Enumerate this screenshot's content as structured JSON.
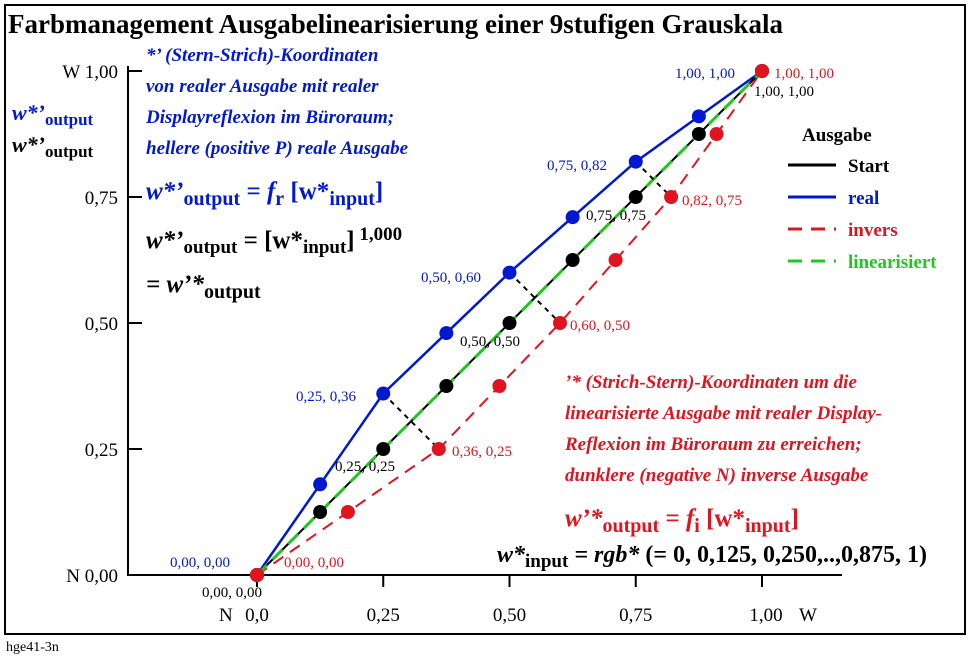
{
  "footer_id": "hge41-3n",
  "chart_data": {
    "type": "line",
    "title": "Farbmanagement Ausgabelinearisierung einer 9stufigen Grauskala",
    "x_tick_labels": [
      "N",
      "0,0",
      "0,25",
      "0,50",
      "0,75",
      "1,00",
      "W"
    ],
    "y_tick_labels": [
      "N 0,00",
      "0,25",
      "0,50",
      "0,75",
      "W 1,00"
    ],
    "ylabel_blue": {
      "base": "w*’",
      "sub": "output"
    },
    "ylabel_black": {
      "base": "w*’",
      "sub": "output"
    },
    "xlim": [
      0,
      1
    ],
    "ylim": [
      0,
      1
    ],
    "grid": false,
    "legend": {
      "title": "Ausgabe",
      "entries": [
        {
          "label": "Start",
          "color": "#000000",
          "dash": "solid"
        },
        {
          "label": "real",
          "color": "#0018d0",
          "dash": "solid"
        },
        {
          "label": "invers",
          "color": "#e0141e",
          "dash": "dashed"
        },
        {
          "label": "linearisiert",
          "color": "#1ec81e",
          "dash": "dashed"
        }
      ]
    },
    "series": [
      {
        "name": "Start",
        "color": "#000000",
        "x": [
          0,
          0.125,
          0.25,
          0.375,
          0.5,
          0.625,
          0.75,
          0.875,
          1.0
        ],
        "y": [
          0,
          0.125,
          0.25,
          0.375,
          0.5,
          0.625,
          0.75,
          0.875,
          1.0
        ]
      },
      {
        "name": "real",
        "color": "#0018d0",
        "x": [
          0,
          0.125,
          0.25,
          0.375,
          0.5,
          0.625,
          0.75,
          0.875,
          1.0
        ],
        "y": [
          0,
          0.18,
          0.36,
          0.48,
          0.6,
          0.71,
          0.82,
          0.91,
          1.0
        ]
      },
      {
        "name": "invers",
        "color": "#e0141e",
        "x": [
          0,
          0.18,
          0.36,
          0.48,
          0.6,
          0.71,
          0.82,
          0.91,
          1.0
        ],
        "y": [
          0,
          0.125,
          0.25,
          0.375,
          0.5,
          0.625,
          0.75,
          0.875,
          1.0
        ]
      },
      {
        "name": "linearisiert",
        "color": "#1ec81e",
        "x": [
          0,
          1
        ],
        "y": [
          0,
          1
        ]
      }
    ],
    "connectors": [
      {
        "from": [
          0.25,
          0.36
        ],
        "to": [
          0.36,
          0.25
        ]
      },
      {
        "from": [
          0.5,
          0.6
        ],
        "to": [
          0.6,
          0.5
        ]
      },
      {
        "from": [
          0.75,
          0.82
        ],
        "to": [
          0.82,
          0.75
        ]
      }
    ],
    "point_labels": [
      {
        "text": "0,00, 0,00",
        "color": "#0018d0"
      },
      {
        "text": "0,00, 0,00",
        "color": "#e0141e"
      },
      {
        "text": "0,00, 0,00",
        "color": "#000000"
      },
      {
        "text": "0,25, 0,36",
        "color": "#0018d0"
      },
      {
        "text": "0,25, 0,25",
        "color": "#000000"
      },
      {
        "text": "0,36, 0,25",
        "color": "#e0141e"
      },
      {
        "text": "0,50, 0,60",
        "color": "#0018d0"
      },
      {
        "text": "0,50, 0,50",
        "color": "#000000"
      },
      {
        "text": "0,60, 0,50",
        "color": "#e0141e"
      },
      {
        "text": "0,75, 0,82",
        "color": "#0018d0"
      },
      {
        "text": "0,75, 0,75",
        "color": "#000000"
      },
      {
        "text": "0,82, 0,75",
        "color": "#e0141e"
      },
      {
        "text": "1,00, 1,00",
        "color": "#0018d0"
      },
      {
        "text": "1,00, 1,00",
        "color": "#e0141e"
      },
      {
        "text": "1,00, 1,00",
        "color": "#000000"
      }
    ],
    "annotations": {
      "blue_lines": [
        "*’ (Stern-Strich)-Koordinaten",
        "von realer Ausgabe mit realer",
        "Displayreflexion im Büroraum;",
        "hellere (positive P) reale Ausgabe"
      ],
      "blue_formula": {
        "lhs": "w*’",
        "lhs_sub": "output",
        "eq": " = ",
        "f": "f",
        "f_sub": "r",
        "arg": " [w*",
        "arg_sub": "input",
        "close": "]"
      },
      "black_formula": {
        "lhs": "w*’",
        "lhs_sub": "output",
        "rest": " = [w*",
        "rest_sub": "input",
        "close": "]",
        "exp": "1,000"
      },
      "black_equals": {
        "text": "= w’*",
        "sub": "output"
      },
      "red_lines": [
        "’* (Strich-Stern)-Koordinaten um die",
        "linearisierte Ausgabe mit realer Display-",
        "Reflexion im Büroraum zu erreichen;",
        "dunklere (negative N) inverse Ausgabe"
      ],
      "red_formula": {
        "lhs": "w’*",
        "lhs_sub": "output",
        "eq": " = ",
        "f": "f",
        "f_sub": "i",
        "arg": " [w*",
        "arg_sub": "input",
        "close": "]"
      },
      "input_formula": {
        "lhs": "w*",
        "lhs_sub": "input",
        "eq": " = rgb*",
        "rest": " (= 0, 0,125, 0,250,..,0,875, 1)"
      }
    }
  }
}
